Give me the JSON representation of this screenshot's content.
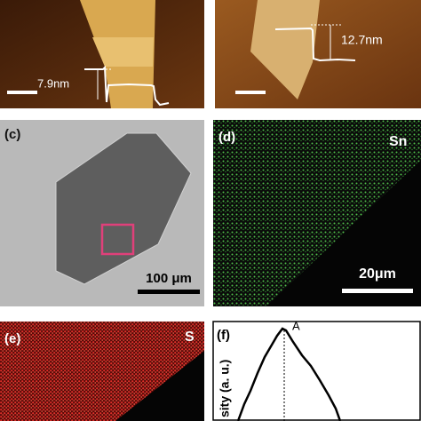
{
  "panel_a": {
    "height_label": "7.9nm"
  },
  "panel_b": {
    "height_label": "12.7nm"
  },
  "panel_c": {
    "label": "(c)",
    "scale_bar": "100 μm"
  },
  "panel_d": {
    "label": "(d)",
    "element": "Sn",
    "scale_bar": "20μm"
  },
  "panel_e": {
    "label": "(e)",
    "element": "S"
  },
  "panel_f": {
    "label": "(f)",
    "peak_label": "A",
    "y_axis_label": "sity (a. u.)"
  }
}
